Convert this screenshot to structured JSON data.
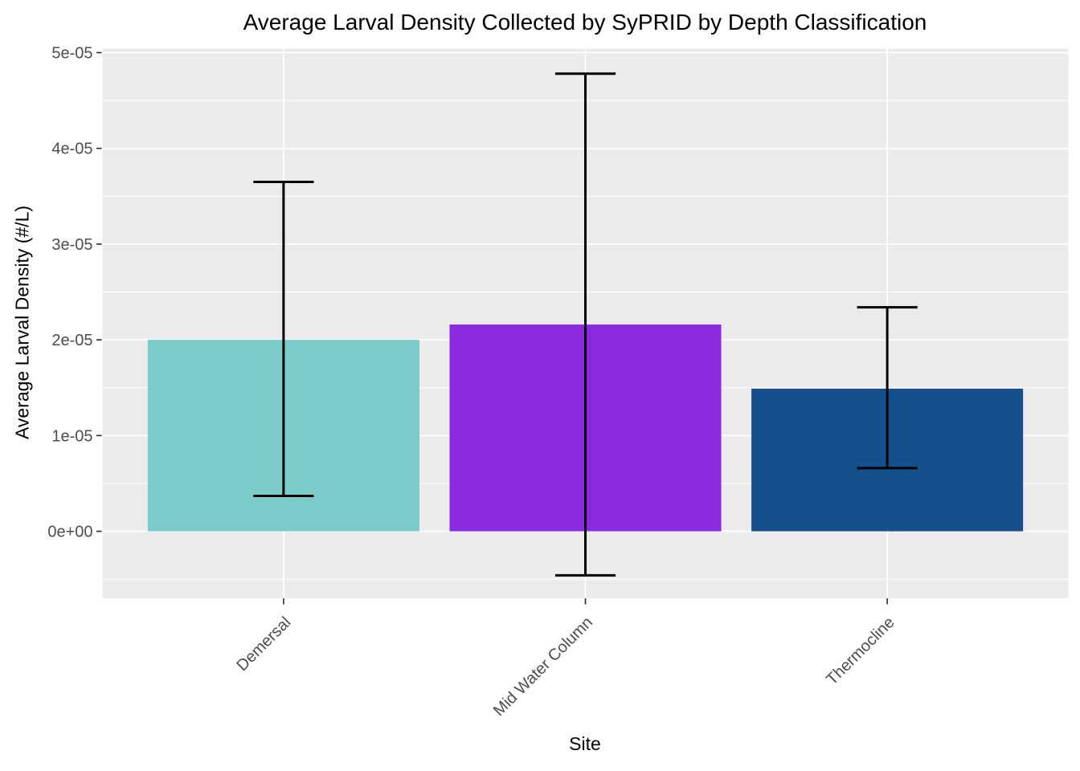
{
  "chart_data": {
    "type": "bar",
    "title": "Average Larval Density Collected by SyPRID by Depth Classification",
    "xlabel": "Site",
    "ylabel": "Average Larval Density (#/L)",
    "categories": [
      "Demersal",
      "Mid Water Column",
      "Thermocline"
    ],
    "values": [
      2e-05,
      2.16e-05,
      1.49e-05
    ],
    "error_low": [
      3.7e-06,
      -4.6e-06,
      6.6e-06
    ],
    "error_high": [
      3.65e-05,
      4.78e-05,
      2.34e-05
    ],
    "bar_colors": [
      "#79CCCA",
      "#8A2BE2",
      "#14508C"
    ],
    "y_ticks": [
      0,
      1e-05,
      2e-05,
      3e-05,
      4e-05,
      5e-05
    ],
    "y_tick_labels": [
      "0e+00",
      "1e-05",
      "2e-05",
      "3e-05",
      "4e-05",
      "5e-05"
    ],
    "ylim": [
      -7e-06,
      5.042e-05
    ],
    "grid": true,
    "legend_position": "none",
    "panel_bg": "#EBEBEB",
    "grid_color": "#FFFFFF",
    "tick_label_color": "#4D4D4D",
    "axis_title_color": "#000000",
    "tick_color": "#333333",
    "errorbar_color": "#000000"
  }
}
